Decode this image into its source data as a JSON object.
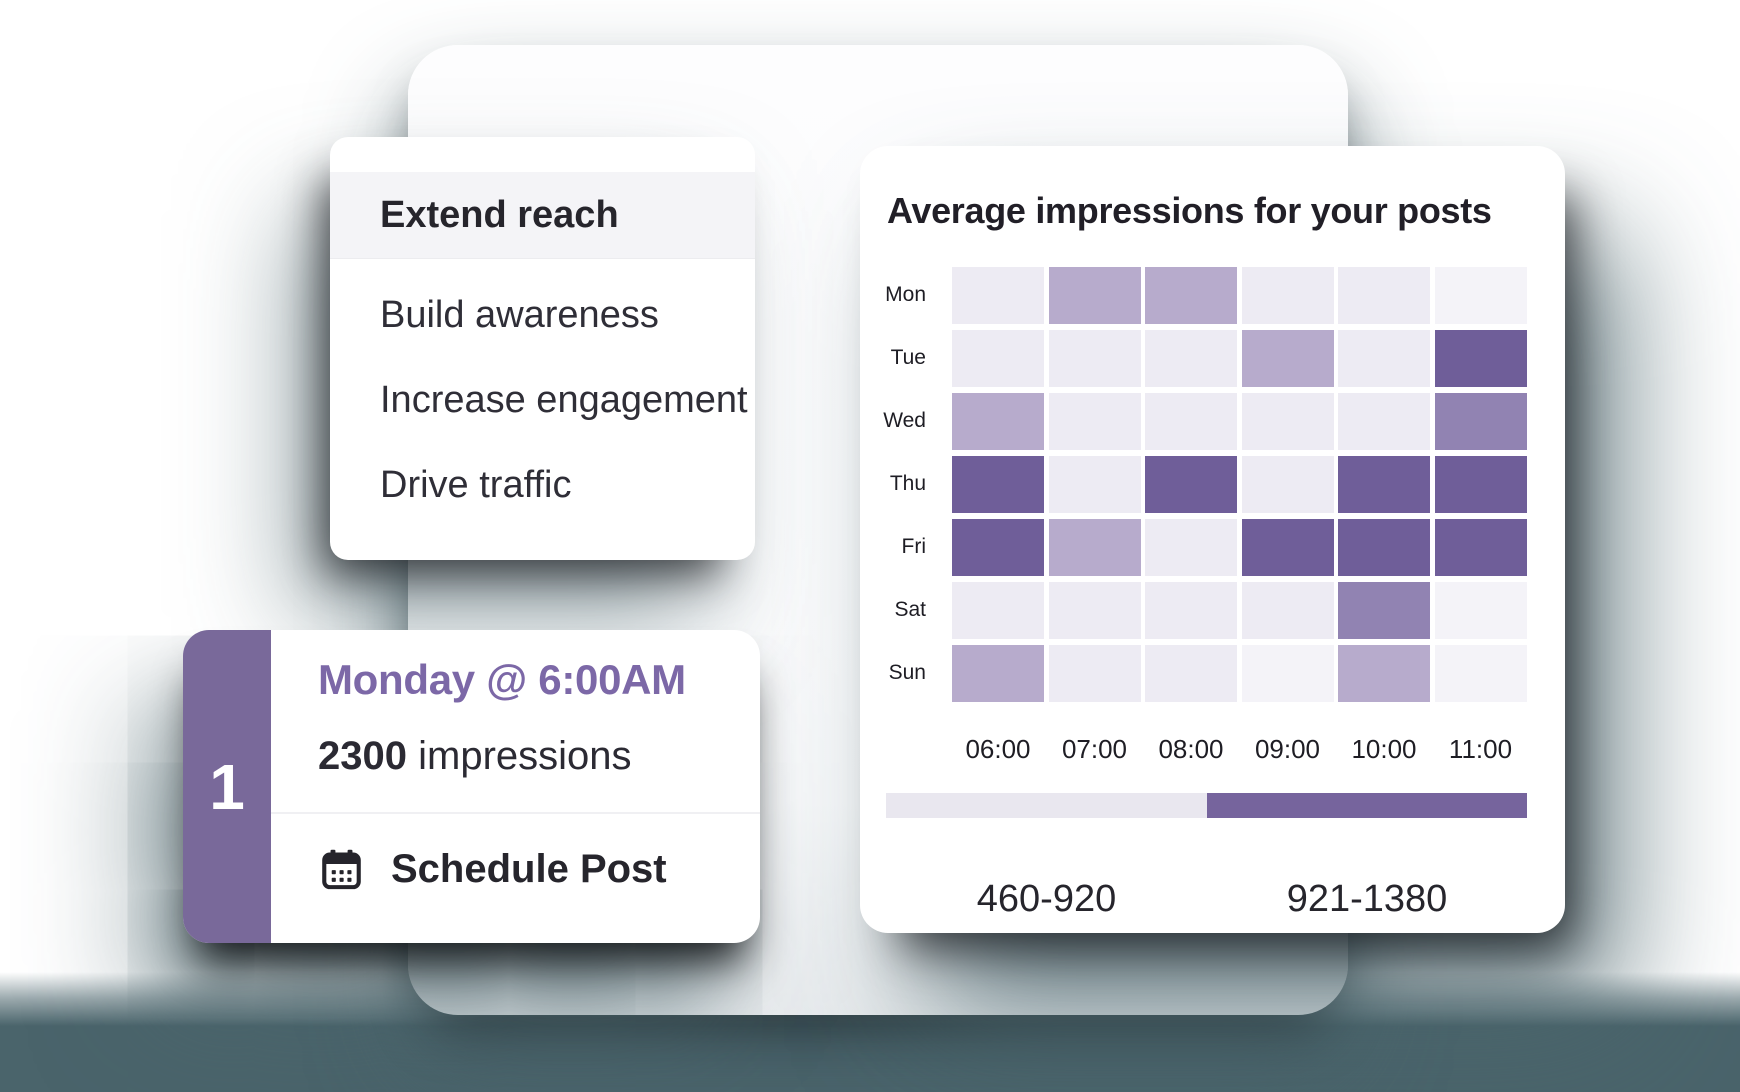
{
  "page": {
    "background": "#ffffff",
    "shadow_color": "#4a646b"
  },
  "dropdown": {
    "items": [
      {
        "label": "Extend reach",
        "selected": true
      },
      {
        "label": "Build awareness",
        "selected": false
      },
      {
        "label": "Increase engagement",
        "selected": false
      },
      {
        "label": "Drive traffic",
        "selected": false
      }
    ]
  },
  "schedule": {
    "rank": "1",
    "slot": "Monday @ 6:00AM",
    "impressions_value": "2300",
    "impressions_unit": "impressions",
    "action_label": "Schedule Post",
    "accent_color": "#79699a",
    "slot_color": "#7c68a7",
    "calendar_icon": "calendar-icon"
  },
  "heatmap": {
    "title": "Average impressions for your posts",
    "days": [
      "Mon",
      "Tue",
      "Wed",
      "Thu",
      "Fri",
      "Sat",
      "Sun"
    ],
    "times": [
      "06:00",
      "07:00",
      "08:00",
      "09:00",
      "10:00",
      "11:00"
    ],
    "levels": [
      [
        1,
        2,
        2,
        1,
        1,
        0
      ],
      [
        1,
        1,
        1,
        2,
        1,
        4
      ],
      [
        2,
        1,
        1,
        1,
        1,
        3
      ],
      [
        4,
        1,
        4,
        1,
        4,
        4
      ],
      [
        4,
        2,
        1,
        4,
        4,
        4
      ],
      [
        1,
        1,
        1,
        1,
        3,
        0
      ],
      [
        2,
        1,
        1,
        0,
        2,
        0
      ]
    ],
    "palette": [
      "#f4f3f8",
      "#edebf3",
      "#b7abcc",
      "#9183b2",
      "#6f5e99"
    ],
    "legend": [
      {
        "label": "460-920",
        "color": "#e9e7ef"
      },
      {
        "label": "921-1380",
        "color": "#76649d"
      }
    ]
  },
  "chart_data": {
    "type": "heatmap",
    "title": "Average impressions for your posts",
    "x": [
      "06:00",
      "07:00",
      "08:00",
      "09:00",
      "10:00",
      "11:00"
    ],
    "y": [
      "Mon",
      "Tue",
      "Wed",
      "Thu",
      "Fri",
      "Sat",
      "Sun"
    ],
    "values": [
      [
        560,
        800,
        800,
        560,
        560,
        470
      ],
      [
        560,
        560,
        560,
        800,
        560,
        1300
      ],
      [
        800,
        560,
        560,
        560,
        560,
        1000
      ],
      [
        1300,
        560,
        1300,
        560,
        1300,
        1300
      ],
      [
        1300,
        800,
        560,
        1300,
        1300,
        1300
      ],
      [
        560,
        560,
        560,
        560,
        1000,
        470
      ],
      [
        800,
        560,
        560,
        470,
        800,
        470
      ]
    ],
    "value_unit": "impressions",
    "legend_bins": [
      {
        "range": "460-920",
        "color": "#e9e7ef"
      },
      {
        "range": "921-1380",
        "color": "#76649d"
      }
    ],
    "xlabel": "",
    "ylabel": "",
    "legend_position": "bottom",
    "grid": false
  }
}
